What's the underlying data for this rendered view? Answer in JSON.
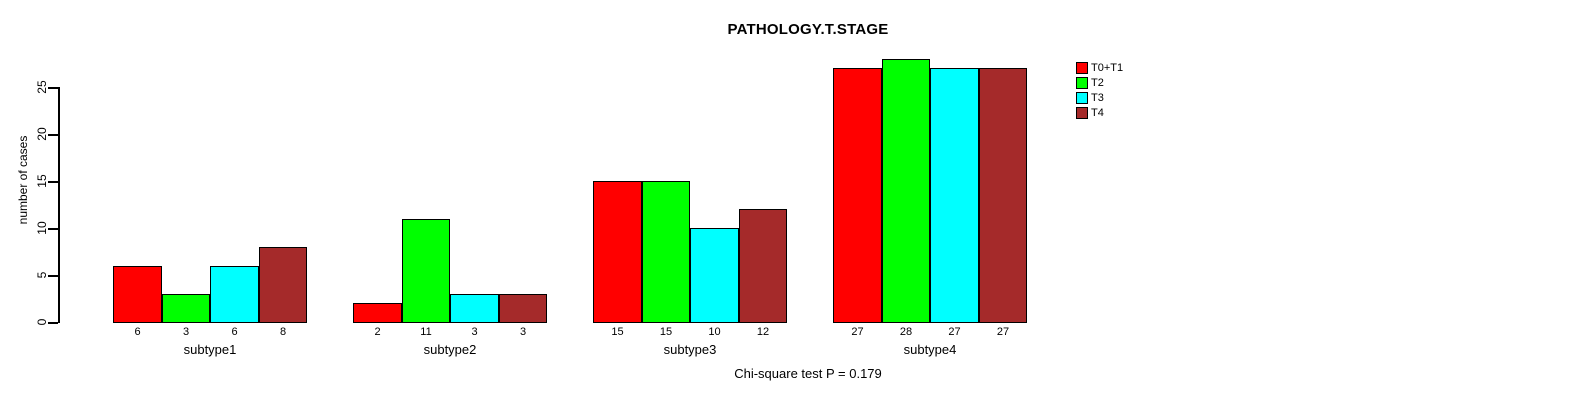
{
  "chart_data": {
    "type": "bar",
    "title": "PATHOLOGY.T.STAGE",
    "xlabel": "",
    "ylabel": "number of cases",
    "annotation": "Chi-square test P = 0.179",
    "categories": [
      "subtype1",
      "subtype2",
      "subtype3",
      "subtype4"
    ],
    "series": [
      {
        "name": "T0+T1",
        "color": "#FF0000",
        "values": [
          6,
          2,
          15,
          27
        ]
      },
      {
        "name": "T2",
        "color": "#00FF00",
        "values": [
          3,
          11,
          15,
          28
        ]
      },
      {
        "name": "T3",
        "color": "#00FFFF",
        "values": [
          6,
          3,
          10,
          27
        ]
      },
      {
        "name": "T4",
        "color": "#A52A2A",
        "values": [
          8,
          3,
          12,
          27
        ]
      }
    ],
    "bar_value_labels": true,
    "yticks": [
      0,
      5,
      10,
      15,
      20,
      25
    ],
    "ylim": [
      0,
      28
    ],
    "grid": false,
    "legend_position": "top-right",
    "background_color": "#FFFFFF",
    "axis_color": "#000000"
  }
}
